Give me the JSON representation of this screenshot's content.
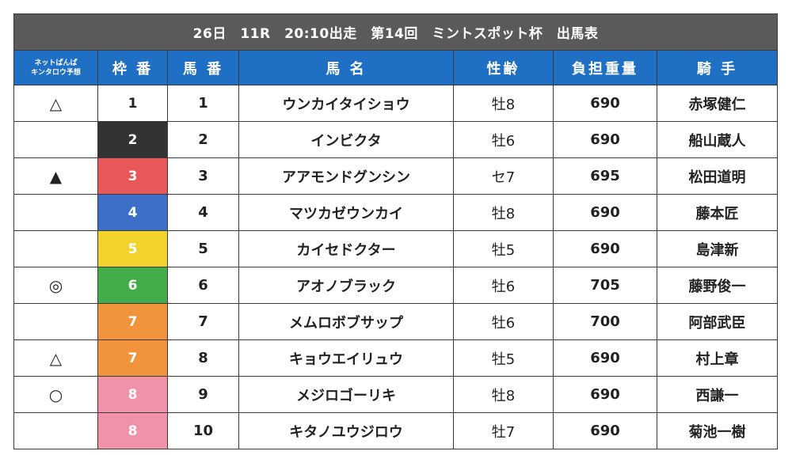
{
  "title": "26日　11R　20:10出走　第14回　ミントスポット杯　出馬表",
  "headers": {
    "prediction_line1": "ネットぱんぱ",
    "prediction_line2": "キンタロウ予想",
    "frame": "枠 番",
    "number": "馬 番",
    "horse_name": "馬 名",
    "sex_age": "性齢",
    "weight": "負担重量",
    "jockey": "騎 手"
  },
  "frame_colors": {
    "1": "#ffffff",
    "2": "#333333",
    "3": "#e85858",
    "4": "#3d6fc9",
    "5": "#f2d32c",
    "6": "#43ad4b",
    "7": "#f0933a",
    "8": "#f092a8"
  },
  "colors": {
    "title_bg": "#5a5a5a",
    "header_bg": "#1f6fc4"
  },
  "entries": [
    {
      "mark": "△",
      "frame": "1",
      "number": "1",
      "horse": "ウンカイタイショウ",
      "sex_age": "牡8",
      "weight": "690",
      "jockey": "赤塚健仁"
    },
    {
      "mark": "",
      "frame": "2",
      "number": "2",
      "horse": "インビクタ",
      "sex_age": "牡6",
      "weight": "690",
      "jockey": "船山蔵人"
    },
    {
      "mark": "▲",
      "frame": "3",
      "number": "3",
      "horse": "アアモンドグンシン",
      "sex_age": "セ7",
      "weight": "695",
      "jockey": "松田道明"
    },
    {
      "mark": "",
      "frame": "4",
      "number": "4",
      "horse": "マツカゼウンカイ",
      "sex_age": "牡8",
      "weight": "690",
      "jockey": "藤本匠"
    },
    {
      "mark": "",
      "frame": "5",
      "number": "5",
      "horse": "カイセドクター",
      "sex_age": "牡5",
      "weight": "690",
      "jockey": "島津新"
    },
    {
      "mark": "◎",
      "frame": "6",
      "number": "6",
      "horse": "アオノブラック",
      "sex_age": "牡6",
      "weight": "705",
      "jockey": "藤野俊一"
    },
    {
      "mark": "",
      "frame": "7",
      "number": "7",
      "horse": "メムロボブサップ",
      "sex_age": "牡6",
      "weight": "700",
      "jockey": "阿部武臣"
    },
    {
      "mark": "△",
      "frame": "7",
      "number": "8",
      "horse": "キョウエイリュウ",
      "sex_age": "牡5",
      "weight": "690",
      "jockey": "村上章"
    },
    {
      "mark": "○",
      "frame": "8",
      "number": "9",
      "horse": "メジロゴーリキ",
      "sex_age": "牡8",
      "weight": "690",
      "jockey": "西謙一"
    },
    {
      "mark": "",
      "frame": "8",
      "number": "10",
      "horse": "キタノユウジロウ",
      "sex_age": "牡7",
      "weight": "690",
      "jockey": "菊池一樹"
    }
  ]
}
